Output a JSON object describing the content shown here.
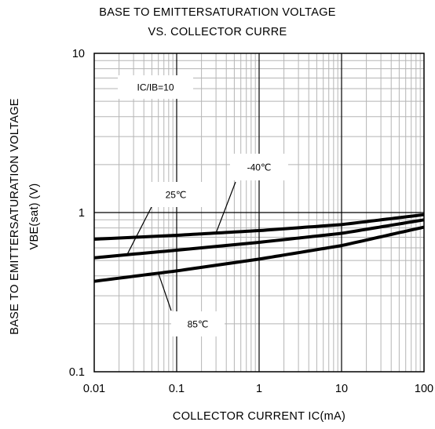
{
  "chart_data": {
    "type": "line",
    "title_line1": "BASE TO EMITTERSATURATION VOLTAGE",
    "title_line2": "VS. COLLECTOR CURRE",
    "xlabel": "COLLECTOR CURRENT  IC(mA)",
    "ylabel_line1": "BASE TO EMITTERSATURATION VOLTAGE",
    "ylabel_line2": "VBE(sat)  (V)",
    "x_scale": "log",
    "y_scale": "log",
    "xlim": [
      0.01,
      100
    ],
    "ylim": [
      0.1,
      10
    ],
    "x_ticks": [
      "0.01",
      "0.1",
      "1",
      "10",
      "100"
    ],
    "y_ticks": [
      "10",
      "1",
      "0.1"
    ],
    "grid": true,
    "condition_label": "IC/IB=10",
    "series": [
      {
        "name": "-40℃",
        "x": [
          0.01,
          0.1,
          1,
          10,
          100
        ],
        "y": [
          0.68,
          0.72,
          0.77,
          0.84,
          0.97
        ]
      },
      {
        "name": "25℃",
        "x": [
          0.01,
          0.1,
          1,
          10,
          100
        ],
        "y": [
          0.52,
          0.58,
          0.65,
          0.74,
          0.9
        ]
      },
      {
        "name": "85℃",
        "x": [
          0.01,
          0.1,
          1,
          10,
          100
        ],
        "y": [
          0.37,
          0.43,
          0.51,
          0.62,
          0.81
        ]
      }
    ]
  }
}
